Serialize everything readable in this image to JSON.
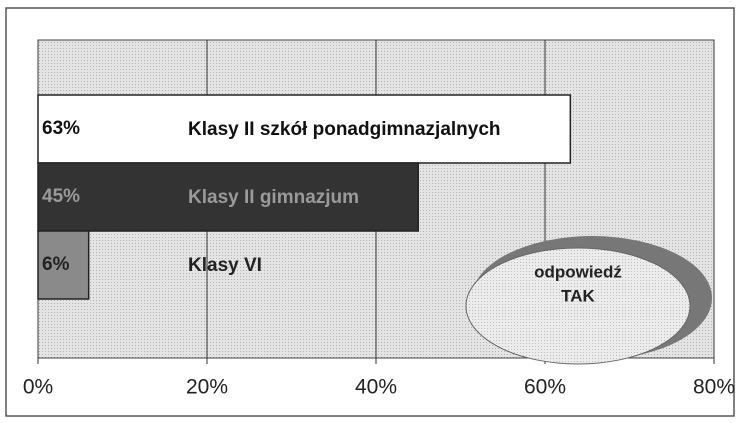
{
  "chart_data": {
    "type": "hbar",
    "categories": [
      "Klasy II szkół ponadgimnazjalnych",
      "Klasy II gimnazjum",
      "Klasy VI"
    ],
    "values": [
      63,
      45,
      6
    ],
    "value_labels": [
      "63%",
      "45%",
      "6%"
    ],
    "colors": [
      "#ffffff",
      "#333333",
      "#8a8a8a"
    ],
    "xlim": [
      0,
      80
    ],
    "xticks": [
      {
        "value": 0,
        "label": "0%"
      },
      {
        "value": 20,
        "label": "20%"
      },
      {
        "value": 40,
        "label": "40%"
      },
      {
        "value": 60,
        "label": "60%"
      },
      {
        "value": 80,
        "label": "80%"
      }
    ],
    "grid": true,
    "annotation": [
      "odpowiedź",
      "TAK"
    ]
  }
}
